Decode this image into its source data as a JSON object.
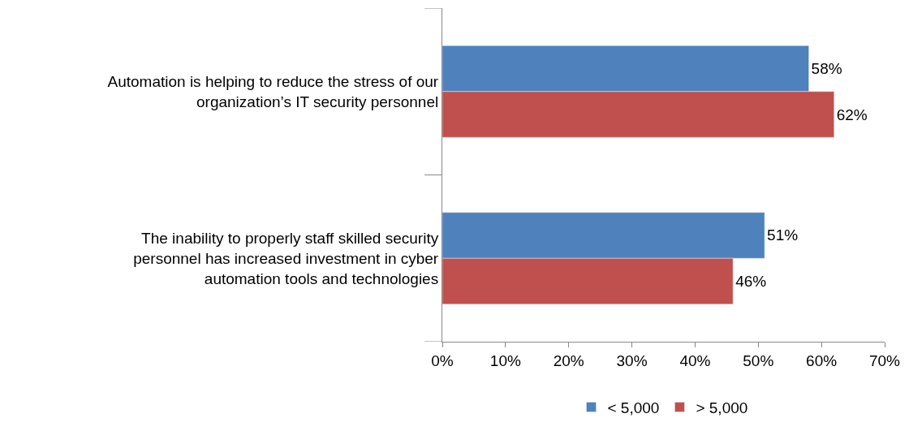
{
  "chart_data": {
    "type": "bar",
    "orientation": "horizontal",
    "categories": [
      "Automation is helping to reduce the stress of our organization’s IT security personnel",
      "The inability to properly staff skilled security personnel has increased investment in cyber automation tools and technologies"
    ],
    "series": [
      {
        "name": "< 5,000",
        "color": "#4f81bd",
        "values": [
          58,
          51
        ],
        "value_labels": [
          "58%",
          "51%"
        ]
      },
      {
        "name": "> 5,000",
        "color": "#c0504d",
        "values": [
          62,
          46
        ],
        "value_labels": [
          "62%",
          "46%"
        ]
      }
    ],
    "xlim": [
      0,
      70
    ],
    "xticks": [
      {
        "value": 0,
        "label": "0%"
      },
      {
        "value": 10,
        "label": "10%"
      },
      {
        "value": 20,
        "label": "20%"
      },
      {
        "value": 30,
        "label": "30%"
      },
      {
        "value": 40,
        "label": "40%"
      },
      {
        "value": 50,
        "label": "50%"
      },
      {
        "value": 60,
        "label": "60%"
      },
      {
        "value": 70,
        "label": "70%"
      }
    ],
    "legend": "bottom"
  }
}
